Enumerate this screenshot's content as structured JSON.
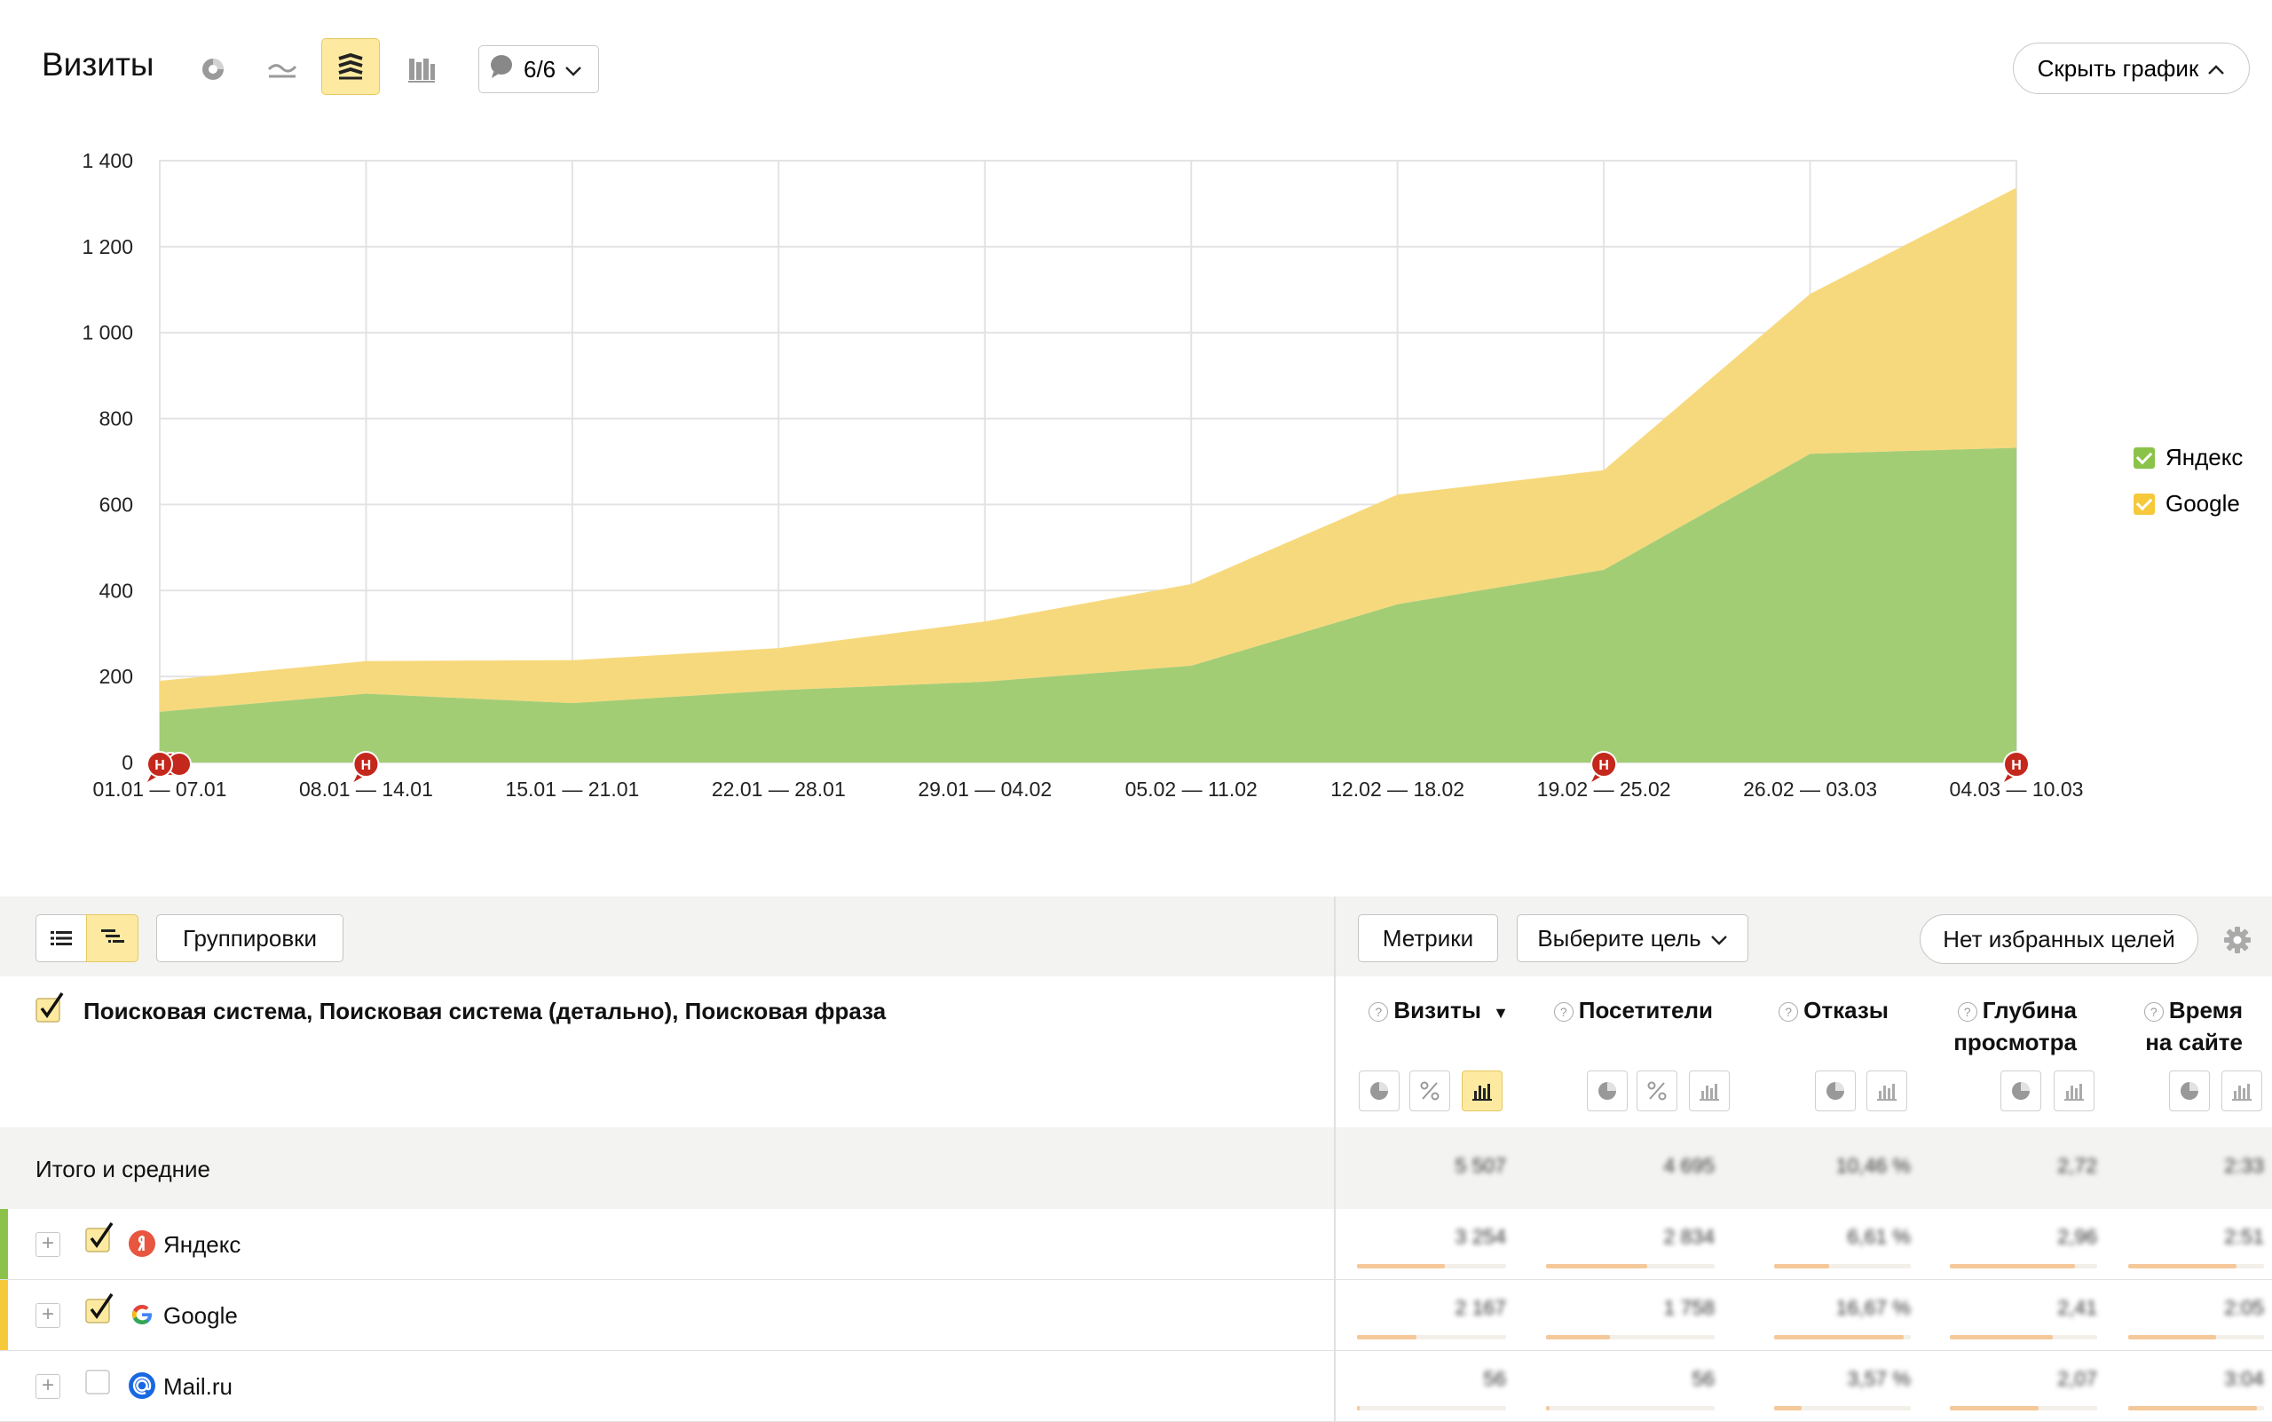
{
  "header": {
    "title": "Визиты",
    "notes_label": "6/6",
    "hide_chart_label": "Скрыть график",
    "chart_modes": [
      "pie-chart-icon",
      "line-chart-icon",
      "stacked-area-icon",
      "bar-chart-icon"
    ],
    "active_mode": "stacked-area-icon"
  },
  "chart_data": {
    "type": "area",
    "stacked": true,
    "title": "",
    "xlabel": "",
    "ylabel": "",
    "categories": [
      "01.01 — 07.01",
      "08.01 — 14.01",
      "15.01 — 21.01",
      "22.01 — 28.01",
      "29.01 — 04.02",
      "05.02 — 11.02",
      "12.02 — 18.02",
      "19.02 — 25.02",
      "26.02 — 03.03",
      "04.03 — 10.03"
    ],
    "yticks": [
      "0",
      "200",
      "400",
      "600",
      "800",
      "1 000",
      "1 200",
      "1 400"
    ],
    "ylim": [
      0,
      1400
    ],
    "grid": true,
    "legend_position": "right",
    "series": [
      {
        "name": "Яндекс",
        "color": "#a3cd75",
        "values": [
          118,
          160,
          138,
          168,
          188,
          225,
          368,
          448,
          718,
          732
        ]
      },
      {
        "name": "Google",
        "color": "#f7d97d",
        "values": [
          72,
          76,
          100,
          98,
          140,
          190,
          255,
          232,
          372,
          605
        ]
      }
    ],
    "annotation_marker": "Н",
    "annotation_categories": [
      0,
      1,
      7,
      9
    ]
  },
  "legend": [
    {
      "label": "Яндекс",
      "color": "#8bc34a"
    },
    {
      "label": "Google",
      "color": "#f5c93a"
    }
  ],
  "toolbar": {
    "groupings_label": "Группировки",
    "metrics_label": "Метрики",
    "goal_select_label": "Выберите цель",
    "favorite_goals_label": "Нет избранных целей"
  },
  "table": {
    "dimensions_label": "Поисковая система, Поисковая система (детально), Поисковая фраза",
    "columns": [
      {
        "line1": "Визиты",
        "line2": "",
        "sorted": true
      },
      {
        "line1": "Посетители",
        "line2": ""
      },
      {
        "line1": "Отказы",
        "line2": ""
      },
      {
        "line1": "Глубина",
        "line2": "просмотра"
      },
      {
        "line1": "Время",
        "line2": "на сайте"
      }
    ],
    "sort_arrow": "▼",
    "total": {
      "label": "Итого и средние",
      "values": [
        "5 507",
        "4 695",
        "10,46 %",
        "2,72",
        "2:33"
      ]
    },
    "rows": [
      {
        "label": "Яндекс",
        "checked": true,
        "color": "#8bc34a",
        "values": [
          "3 254",
          "2 834",
          "6,61 %",
          "2,96",
          "2:51"
        ],
        "bars": [
          0.59,
          0.6,
          0.4,
          0.85,
          0.8
        ]
      },
      {
        "label": "Google",
        "checked": true,
        "color": "#f5c93a",
        "values": [
          "2 167",
          "1 758",
          "16,67 %",
          "2,41",
          "2:05"
        ],
        "bars": [
          0.4,
          0.38,
          0.95,
          0.7,
          0.65
        ]
      },
      {
        "label": "Mail.ru",
        "checked": false,
        "color": "#ffffff",
        "values": [
          "56",
          "56",
          "3,57 %",
          "2,07",
          "3:04"
        ],
        "bars": [
          0.02,
          0.02,
          0.2,
          0.6,
          0.95
        ]
      }
    ]
  }
}
